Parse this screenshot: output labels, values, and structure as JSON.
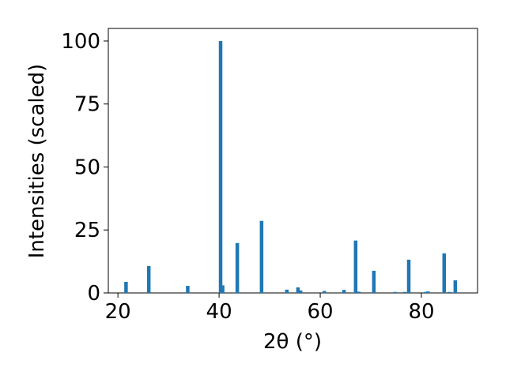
{
  "chart_data": {
    "type": "bar",
    "x_label": "2θ (°)",
    "y_label": "Intensities (scaled)",
    "x": [
      21.6,
      26.1,
      33.8,
      40.3,
      40.7,
      43.6,
      48.4,
      53.4,
      55.6,
      56.1,
      60.8,
      64.7,
      67.0,
      67.6,
      70.6,
      74.8,
      76.7,
      77.5,
      80.8,
      81.3,
      84.5,
      85.5,
      86.7
    ],
    "values": [
      4.4,
      10.7,
      2.8,
      100,
      3,
      19.8,
      28.6,
      1.3,
      2.2,
      1.0,
      0.8,
      1.2,
      20.8,
      0.5,
      8.8,
      0.4,
      0.4,
      13.2,
      0.4,
      0.6,
      15.7,
      0.4,
      5.0
    ],
    "color": "#1f77b4",
    "xlim": [
      18.1,
      91.1
    ],
    "xticks": [
      20,
      40,
      60,
      80
    ],
    "ylim": [
      0,
      105
    ],
    "yticks": [
      0,
      25,
      50,
      75,
      100
    ]
  }
}
